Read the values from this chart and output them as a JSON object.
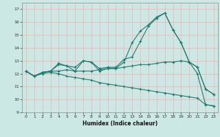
{
  "title": "",
  "xlabel": "Humidex (Indice chaleur)",
  "ylabel": "",
  "bg_color": "#cce8e4",
  "grid_color": "#ffaaaa",
  "line_color": "#1a7a6e",
  "xlim": [
    -0.5,
    23.5
  ],
  "ylim": [
    9,
    17.5
  ],
  "xticks": [
    0,
    1,
    2,
    3,
    4,
    5,
    6,
    7,
    8,
    9,
    10,
    11,
    12,
    13,
    14,
    15,
    16,
    17,
    18,
    19,
    20,
    21,
    22,
    23
  ],
  "yticks": [
    9,
    10,
    11,
    12,
    13,
    14,
    15,
    16,
    17
  ],
  "line1_x": [
    0,
    1,
    2,
    3,
    4,
    5,
    6,
    7,
    8,
    9,
    10,
    11,
    12,
    13,
    14,
    15,
    16,
    17,
    18,
    19,
    20,
    21,
    22,
    23
  ],
  "line1_y": [
    12.2,
    11.8,
    12.1,
    12.2,
    12.8,
    12.6,
    12.2,
    13.0,
    12.9,
    12.2,
    12.4,
    12.4,
    12.9,
    14.4,
    15.3,
    15.8,
    16.4,
    16.7,
    15.4,
    14.4,
    12.9,
    12.5,
    10.8,
    10.4
  ],
  "line2_x": [
    0,
    1,
    2,
    3,
    4,
    5,
    6,
    7,
    8,
    9,
    10,
    11,
    12,
    13,
    14,
    15,
    16,
    17,
    18,
    19,
    20,
    21,
    22,
    23
  ],
  "line2_y": [
    12.2,
    11.8,
    12.1,
    12.2,
    12.7,
    12.6,
    12.5,
    13.0,
    12.9,
    12.4,
    12.5,
    12.5,
    13.1,
    13.3,
    14.5,
    15.7,
    16.3,
    16.7,
    15.4,
    14.4,
    12.9,
    12.5,
    10.8,
    10.4
  ],
  "line3_x": [
    0,
    1,
    2,
    3,
    4,
    5,
    6,
    7,
    8,
    9,
    10,
    11,
    12,
    13,
    14,
    15,
    16,
    17,
    18,
    19,
    20,
    21,
    22,
    23
  ],
  "line3_y": [
    12.2,
    11.8,
    12.1,
    12.2,
    12.2,
    12.3,
    12.2,
    12.2,
    12.2,
    12.3,
    12.4,
    12.4,
    12.5,
    12.6,
    12.7,
    12.7,
    12.8,
    12.9,
    12.9,
    13.0,
    12.9,
    12.0,
    9.6,
    9.5
  ],
  "line4_x": [
    0,
    1,
    2,
    3,
    4,
    5,
    6,
    7,
    8,
    9,
    10,
    11,
    12,
    13,
    14,
    15,
    16,
    17,
    18,
    19,
    20,
    21,
    22,
    23
  ],
  "line4_y": [
    12.2,
    11.8,
    12.0,
    12.1,
    12.0,
    11.8,
    11.7,
    11.6,
    11.5,
    11.3,
    11.2,
    11.1,
    11.0,
    10.9,
    10.8,
    10.7,
    10.6,
    10.5,
    10.4,
    10.3,
    10.2,
    10.1,
    9.6,
    9.5
  ]
}
